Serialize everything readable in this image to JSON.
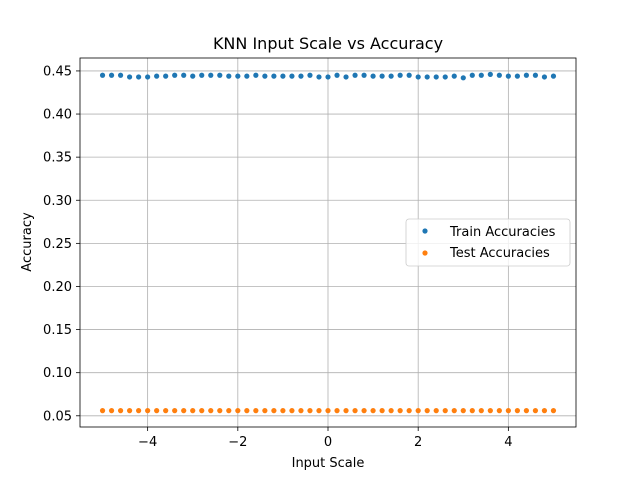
{
  "chart_data": {
    "type": "scatter",
    "title": "KNN Input Scale vs Accuracy",
    "xlabel": "Input Scale",
    "ylabel": "Accuracy",
    "xlim": [
      -5.5,
      5.5
    ],
    "ylim": [
      0.037,
      0.465
    ],
    "xticks": [
      -4,
      -2,
      0,
      2,
      4
    ],
    "xtick_labels": [
      "−4",
      "−2",
      "0",
      "2",
      "4"
    ],
    "yticks": [
      0.05,
      0.1,
      0.15,
      0.2,
      0.25,
      0.3,
      0.35,
      0.4,
      0.45
    ],
    "ytick_labels": [
      "0.05",
      "0.10",
      "0.15",
      "0.20",
      "0.25",
      "0.30",
      "0.35",
      "0.40",
      "0.45"
    ],
    "grid": true,
    "legend_position": "center-right",
    "x": [
      -5.0,
      -4.8,
      -4.6,
      -4.4,
      -4.2,
      -4.0,
      -3.8,
      -3.6,
      -3.4,
      -3.2,
      -3.0,
      -2.8,
      -2.6,
      -2.4,
      -2.2,
      -2.0,
      -1.8,
      -1.6,
      -1.4,
      -1.2,
      -1.0,
      -0.8,
      -0.6,
      -0.4,
      -0.2,
      0.0,
      0.2,
      0.4,
      0.6,
      0.8,
      1.0,
      1.2,
      1.4,
      1.6,
      1.8,
      2.0,
      2.2,
      2.4,
      2.6,
      2.8,
      3.0,
      3.2,
      3.4,
      3.6,
      3.8,
      4.0,
      4.2,
      4.4,
      4.6,
      4.8,
      5.0
    ],
    "series": [
      {
        "name": "Train Accuracies",
        "color": "#1f77b4",
        "values": [
          0.445,
          0.445,
          0.445,
          0.443,
          0.443,
          0.443,
          0.444,
          0.444,
          0.445,
          0.445,
          0.444,
          0.445,
          0.445,
          0.445,
          0.444,
          0.444,
          0.444,
          0.445,
          0.444,
          0.444,
          0.444,
          0.444,
          0.444,
          0.445,
          0.443,
          0.443,
          0.445,
          0.443,
          0.445,
          0.445,
          0.444,
          0.444,
          0.444,
          0.445,
          0.445,
          0.443,
          0.443,
          0.443,
          0.443,
          0.444,
          0.442,
          0.445,
          0.445,
          0.446,
          0.445,
          0.444,
          0.444,
          0.445,
          0.445,
          0.443,
          0.444
        ]
      },
      {
        "name": "Test Accuracies",
        "color": "#ff7f0e",
        "values": [
          0.056,
          0.056,
          0.056,
          0.056,
          0.056,
          0.056,
          0.056,
          0.056,
          0.056,
          0.056,
          0.056,
          0.056,
          0.056,
          0.056,
          0.056,
          0.056,
          0.056,
          0.056,
          0.056,
          0.056,
          0.056,
          0.056,
          0.056,
          0.056,
          0.056,
          0.056,
          0.056,
          0.056,
          0.056,
          0.056,
          0.056,
          0.056,
          0.056,
          0.056,
          0.056,
          0.056,
          0.056,
          0.056,
          0.056,
          0.056,
          0.056,
          0.056,
          0.056,
          0.056,
          0.056,
          0.056,
          0.056,
          0.056,
          0.056,
          0.056,
          0.056
        ]
      }
    ]
  }
}
